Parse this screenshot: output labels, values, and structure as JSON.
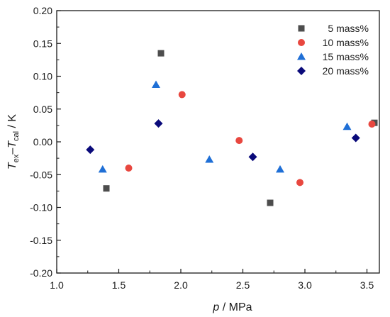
{
  "chart_data": {
    "type": "scatter",
    "xlabel": {
      "italic": "p",
      "rest": " / MPa"
    },
    "ylabel": {
      "t1": "T",
      "s1": "ex",
      "mid": "–",
      "t2": "T",
      "s2": "cal",
      "rest": " / K"
    },
    "xlim": [
      1.0,
      3.6
    ],
    "ylim": [
      -0.2,
      0.2
    ],
    "xticks": [
      "1.0",
      "1.5",
      "2.0",
      "2.5",
      "3.0",
      "3.5"
    ],
    "yticks": [
      "0.20",
      "0.15",
      "0.10",
      "0.05",
      "0.00",
      "-0.05",
      "-0.10",
      "-0.15",
      "-0.20"
    ],
    "grid": false,
    "legend_position": "top-right",
    "series": [
      {
        "name": "5 mass%",
        "marker": "square",
        "color": "#4d4d4d",
        "points": [
          [
            1.4,
            -0.071
          ],
          [
            1.84,
            0.135
          ],
          [
            2.72,
            -0.093
          ],
          [
            3.56,
            0.029
          ]
        ]
      },
      {
        "name": "10 mass%",
        "marker": "circle",
        "color": "#e8473f",
        "points": [
          [
            1.58,
            -0.04
          ],
          [
            2.01,
            0.072
          ],
          [
            2.47,
            0.002
          ],
          [
            2.96,
            -0.062
          ],
          [
            3.54,
            0.027
          ]
        ]
      },
      {
        "name": "15 mass%",
        "marker": "triangle",
        "color": "#1f6fd6",
        "points": [
          [
            1.37,
            -0.042
          ],
          [
            1.8,
            0.087
          ],
          [
            2.23,
            -0.027
          ],
          [
            2.8,
            -0.042
          ],
          [
            3.34,
            0.023
          ]
        ]
      },
      {
        "name": "20 mass%",
        "marker": "diamond",
        "color": "#0a0a7a",
        "points": [
          [
            1.27,
            -0.012
          ],
          [
            1.82,
            0.028
          ],
          [
            2.58,
            -0.023
          ],
          [
            3.41,
            0.006
          ]
        ]
      }
    ]
  }
}
